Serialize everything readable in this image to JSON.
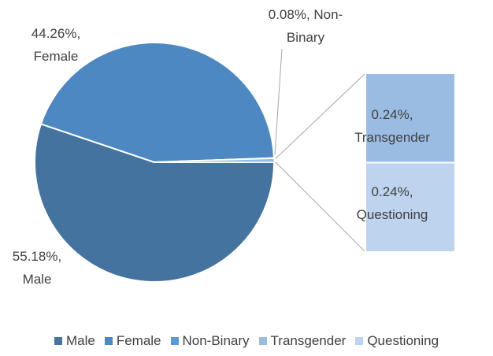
{
  "chart_data": {
    "type": "bar_of_pie",
    "categories": [
      "Male",
      "Female",
      "Non-Binary",
      "Transgender",
      "Questioning"
    ],
    "values": [
      55.18,
      44.26,
      0.08,
      0.24,
      0.24
    ],
    "value_labels": [
      "55.18%, Male",
      "44.26%, Female",
      "0.08%, Non-Binary",
      "0.24%, Transgender",
      "0.24%, Questioning"
    ],
    "colors": [
      "#44739f",
      "#4d88c2",
      "#5b9bd5",
      "#9bbce2",
      "#bdd3ee"
    ],
    "legend": "bottom"
  }
}
